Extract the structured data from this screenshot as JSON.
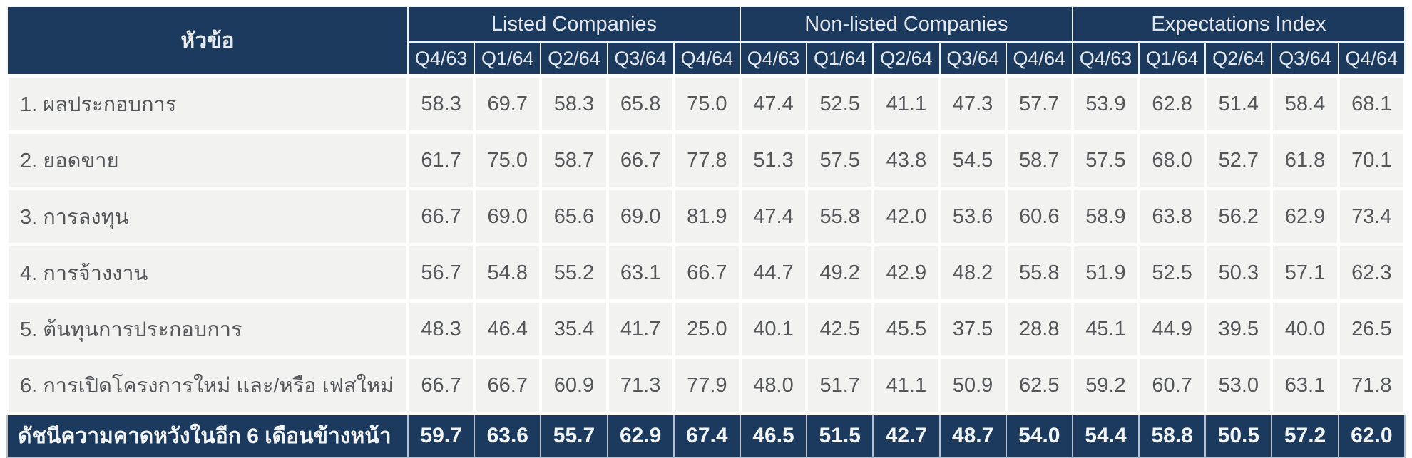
{
  "colors": {
    "header_bg": "#1b3a5e",
    "header_text": "#e4e8ee",
    "row_bg": "#f2f3f1",
    "row_text": "#54565a",
    "summary_bg": "#1b3a5e",
    "summary_text": "#f2f5f9",
    "grid_white": "#ffffff",
    "summary_grid": "#b9c2cc"
  },
  "chart_data": {
    "type": "table",
    "topic_column_header": "หัวข้อ",
    "column_groups": [
      "Listed Companies",
      "Non-listed Companies",
      "Expectations Index"
    ],
    "quarters": [
      "Q4/63",
      "Q1/64",
      "Q2/64",
      "Q3/64",
      "Q4/64"
    ],
    "rows": [
      {
        "label": "1. ผลประกอบการ",
        "listed": [
          "58.3",
          "69.7",
          "58.3",
          "65.8",
          "75.0"
        ],
        "non_listed": [
          "47.4",
          "52.5",
          "41.1",
          "47.3",
          "57.7"
        ],
        "expectations": [
          "53.9",
          "62.8",
          "51.4",
          "58.4",
          "68.1"
        ]
      },
      {
        "label": "2. ยอดขาย",
        "listed": [
          "61.7",
          "75.0",
          "58.7",
          "66.7",
          "77.8"
        ],
        "non_listed": [
          "51.3",
          "57.5",
          "43.8",
          "54.5",
          "58.7"
        ],
        "expectations": [
          "57.5",
          "68.0",
          "52.7",
          "61.8",
          "70.1"
        ]
      },
      {
        "label": "3. การลงทุน",
        "listed": [
          "66.7",
          "69.0",
          "65.6",
          "69.0",
          "81.9"
        ],
        "non_listed": [
          "47.4",
          "55.8",
          "42.0",
          "53.6",
          "60.6"
        ],
        "expectations": [
          "58.9",
          "63.8",
          "56.2",
          "62.9",
          "73.4"
        ]
      },
      {
        "label": "4. การจ้างงาน",
        "listed": [
          "56.7",
          "54.8",
          "55.2",
          "63.1",
          "66.7"
        ],
        "non_listed": [
          "44.7",
          "49.2",
          "42.9",
          "48.2",
          "55.8"
        ],
        "expectations": [
          "51.9",
          "52.5",
          "50.3",
          "57.1",
          "62.3"
        ]
      },
      {
        "label": "5. ต้นทุนการประกอบการ",
        "listed": [
          "48.3",
          "46.4",
          "35.4",
          "41.7",
          "25.0"
        ],
        "non_listed": [
          "40.1",
          "42.5",
          "45.5",
          "37.5",
          "28.8"
        ],
        "expectations": [
          "45.1",
          "44.9",
          "39.5",
          "40.0",
          "26.5"
        ]
      },
      {
        "label": "6. การเปิดโครงการใหม่ และ/หรือ เฟสใหม่",
        "listed": [
          "66.7",
          "66.7",
          "60.9",
          "71.3",
          "77.9"
        ],
        "non_listed": [
          "48.0",
          "51.7",
          "41.1",
          "50.9",
          "62.5"
        ],
        "expectations": [
          "59.2",
          "60.7",
          "53.0",
          "63.1",
          "71.8"
        ]
      }
    ],
    "summary_row": {
      "label": "ดัชนีความคาดหวังในอีก 6 เดือนข้างหน้า",
      "listed": [
        "59.7",
        "63.6",
        "55.7",
        "62.9",
        "67.4"
      ],
      "non_listed": [
        "46.5",
        "51.5",
        "42.7",
        "48.7",
        "54.0"
      ],
      "expectations": [
        "54.4",
        "58.8",
        "50.5",
        "57.2",
        "62.0"
      ]
    }
  }
}
